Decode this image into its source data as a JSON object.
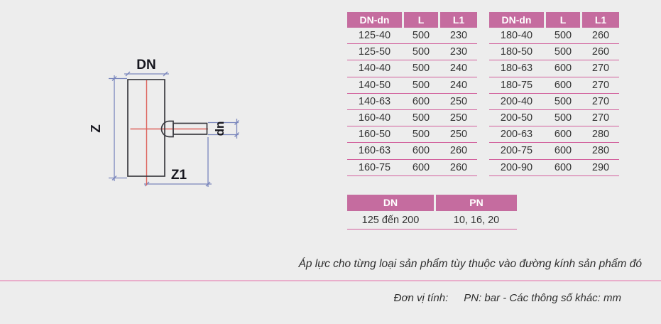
{
  "colors": {
    "page_background": "#ededed",
    "table_header_bg": "#c56c9f",
    "table_header_text": "#ffffff",
    "row_separator": "#d25f9c",
    "bottom_divider": "#e9aecb",
    "drawing_outline": "#3b3b41",
    "drawing_centerline": "#dd615b",
    "drawing_dimension": "#7b87bd"
  },
  "drawing": {
    "label_dn_main": "DN",
    "label_z": "Z",
    "label_z1": "Z1",
    "label_dn_branch": "dn"
  },
  "tables": {
    "left": {
      "headers": [
        "DN-dn",
        "L",
        "L1"
      ],
      "rows": [
        [
          "125-40",
          "500",
          "230"
        ],
        [
          "125-50",
          "500",
          "230"
        ],
        [
          "140-40",
          "500",
          "240"
        ],
        [
          "140-50",
          "500",
          "240"
        ],
        [
          "140-63",
          "600",
          "250"
        ],
        [
          "160-40",
          "500",
          "250"
        ],
        [
          "160-50",
          "500",
          "250"
        ],
        [
          "160-63",
          "600",
          "260"
        ],
        [
          "160-75",
          "600",
          "260"
        ]
      ]
    },
    "right": {
      "headers": [
        "DN-dn",
        "L",
        "L1"
      ],
      "rows": [
        [
          "180-40",
          "500",
          "260"
        ],
        [
          "180-50",
          "500",
          "260"
        ],
        [
          "180-63",
          "600",
          "270"
        ],
        [
          "180-75",
          "600",
          "270"
        ],
        [
          "200-40",
          "500",
          "270"
        ],
        [
          "200-50",
          "500",
          "270"
        ],
        [
          "200-63",
          "600",
          "280"
        ],
        [
          "200-75",
          "600",
          "280"
        ],
        [
          "200-90",
          "600",
          "290"
        ]
      ]
    },
    "pressure": {
      "headers": [
        "DN",
        "PN"
      ],
      "rows": [
        [
          "125 đến 200",
          "10, 16, 20"
        ]
      ]
    }
  },
  "notes": {
    "pressure_note": "Áp lực cho từng loại sản phẩm tùy thuộc vào đường kính sản phẩm đó",
    "units_label": "Đơn vị tính:",
    "units_value": "PN: bar - Các thông số khác: mm"
  }
}
